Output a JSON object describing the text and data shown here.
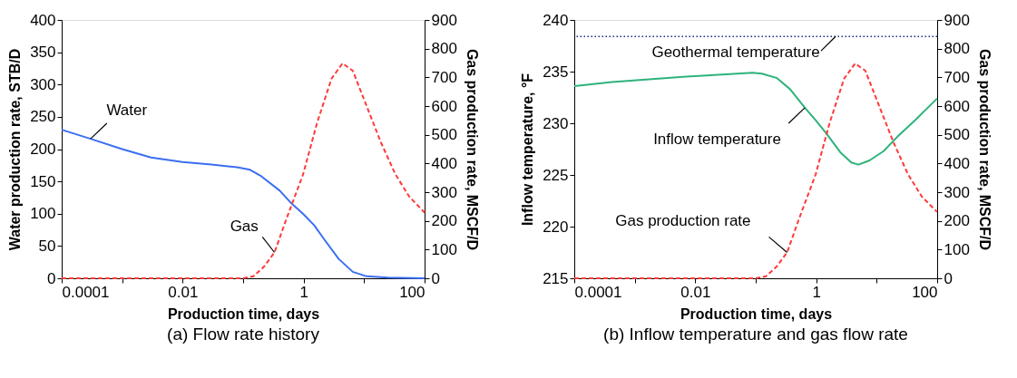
{
  "chart_data": [
    {
      "type": "line",
      "title": "(a) Flow rate history",
      "xlabel": "Production time, days",
      "ylabel": "Water production rate, STB/D",
      "y2label": "Gas production rate, MSCF/D",
      "log": "x",
      "grid": false,
      "marker": "none",
      "xlim": [
        0.0001,
        100
      ],
      "xticks": [
        0.0001,
        {
          "value": 0.001,
          "label": null
        },
        0.01,
        {
          "value": 0.1,
          "label": null
        },
        1,
        {
          "value": 10,
          "label": null
        },
        100
      ],
      "ylim": [
        0,
        400
      ],
      "yticks": [
        0,
        50,
        100,
        150,
        200,
        250,
        300,
        350,
        400
      ],
      "y2lim": [
        0,
        900
      ],
      "y2ticks": [
        0,
        100,
        200,
        300,
        400,
        500,
        600,
        700,
        800,
        900
      ],
      "series": [
        {
          "name": "Water",
          "color": "#3b6ff2",
          "line_style": "solid",
          "x": [
            0.0001,
            0.0003,
            0.001,
            0.003,
            0.01,
            0.03,
            0.08,
            0.13,
            0.2,
            0.4,
            0.6,
            1,
            1.5,
            2.2,
            3.8,
            6.5,
            11,
            25,
            100
          ],
          "values": [
            230,
            216,
            200,
            187,
            180,
            176,
            172,
            168,
            158,
            136,
            118,
            99,
            82,
            60,
            30,
            10,
            3,
            1,
            0
          ]
        },
        {
          "name": "Gas",
          "color": "#ff3a3a",
          "line_style": "dashed",
          "axis": "y2",
          "x": [
            0.0001,
            0.001,
            0.01,
            0.098,
            0.148,
            0.22,
            0.33,
            0.52,
            0.98,
            1.66,
            2.9,
            4.4,
            6.5,
            11.2,
            19,
            33,
            56,
            100
          ],
          "values": [
            0,
            0,
            0,
            0,
            7,
            40,
            90,
            207,
            362,
            540,
            696,
            749,
            723,
            596,
            473,
            362,
            284,
            229
          ]
        }
      ]
    },
    {
      "type": "line",
      "title": "(b) Inflow temperature and gas flow rate",
      "xlabel": "Production time, days",
      "ylabel": "Inflow temperature, °F",
      "y2label": "Gas production rate, MSCF/D",
      "log": "x",
      "grid": false,
      "marker": "none",
      "xlim": [
        0.0001,
        100
      ],
      "xticks": [
        0.0001,
        {
          "value": 0.001,
          "label": null
        },
        0.01,
        {
          "value": 0.1,
          "label": null
        },
        1,
        {
          "value": 10,
          "label": null
        },
        100
      ],
      "ylim": [
        215,
        240
      ],
      "yticks": [
        215,
        220,
        225,
        230,
        235,
        240
      ],
      "y2lim": [
        0,
        900
      ],
      "y2ticks": [
        0,
        100,
        200,
        300,
        400,
        500,
        600,
        700,
        800,
        900
      ],
      "series": [
        {
          "name": "Inflow temperature",
          "color": "#2db37a",
          "line_style": "solid",
          "x": [
            0.0001,
            0.00042,
            0.0063,
            0.089,
            0.126,
            0.22,
            0.37,
            0.65,
            0.98,
            1.48,
            2.5,
            3.8,
            5,
            7.6,
            13,
            22,
            45,
            100
          ],
          "values": [
            233.6,
            234.0,
            234.5,
            234.9,
            234.8,
            234.4,
            233.3,
            231.5,
            230.3,
            229.0,
            227.2,
            226.2,
            226.0,
            226.4,
            227.3,
            228.7,
            230.4,
            232.4
          ]
        },
        {
          "name": "Gas production rate",
          "color": "#ff3a3a",
          "line_style": "dashed",
          "axis": "y2",
          "x": [
            0.0001,
            0.001,
            0.01,
            0.098,
            0.148,
            0.22,
            0.33,
            0.52,
            0.98,
            1.66,
            2.9,
            4.4,
            6.5,
            11.2,
            19,
            33,
            56,
            100
          ],
          "values": [
            0,
            0,
            0,
            0,
            7,
            40,
            90,
            207,
            362,
            540,
            696,
            748,
            723,
            596,
            473,
            362,
            284,
            231
          ]
        }
      ],
      "ref_lines": [
        {
          "axis": "y",
          "value": 238.4,
          "label": "Geothermal temperature",
          "color": "#1a2a80",
          "line_style": "dotted"
        }
      ]
    }
  ]
}
